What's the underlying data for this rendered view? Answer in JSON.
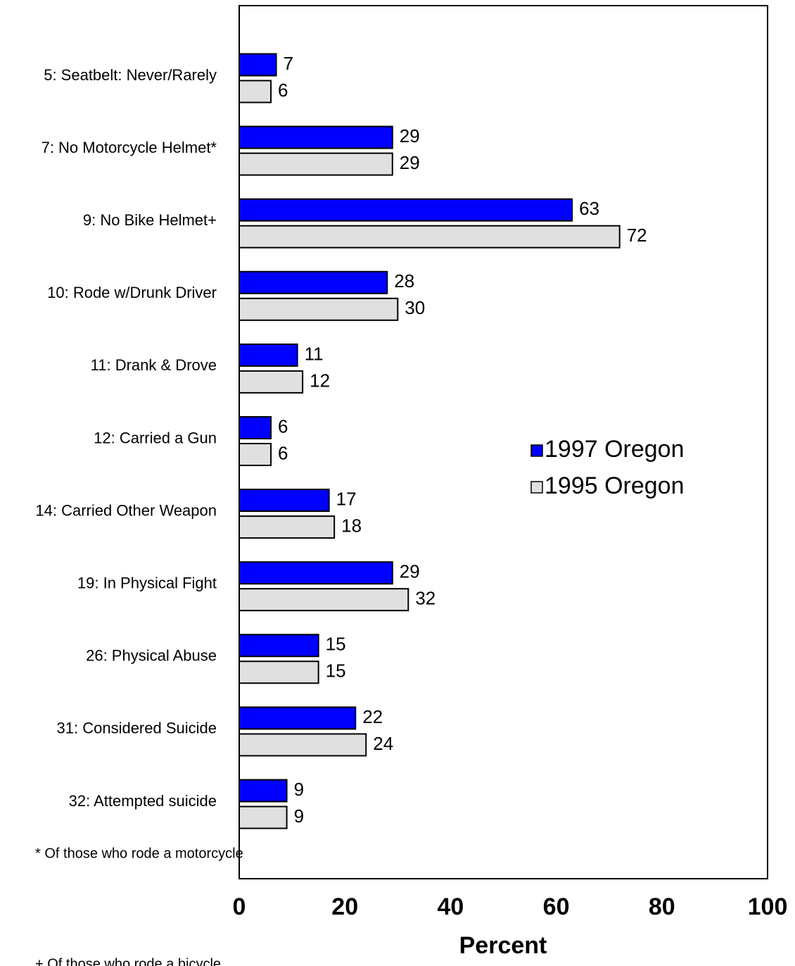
{
  "chart_data": {
    "type": "bar",
    "orientation": "horizontal",
    "categories": [
      "5: Seatbelt: Never/Rarely",
      "7: No Motorcycle Helmet*",
      "9: No Bike Helmet+",
      "10: Rode w/Drunk Driver",
      "11: Drank & Drove",
      "12: Carried a Gun",
      "14: Carried Other Weapon",
      "19: In Physical Fight",
      "26: Physical Abuse",
      "31: Considered Suicide",
      "32: Attempted suicide"
    ],
    "series": [
      {
        "name": "1997 Oregon",
        "color": "#0000ff",
        "values": [
          7,
          29,
          63,
          28,
          11,
          6,
          17,
          29,
          15,
          22,
          9
        ]
      },
      {
        "name": "1995 Oregon",
        "color": "#e0e0e0",
        "values": [
          6,
          29,
          72,
          30,
          12,
          6,
          18,
          32,
          15,
          24,
          9
        ]
      }
    ],
    "xlim": [
      0,
      100
    ],
    "xticks": [
      0,
      20,
      40,
      60,
      80,
      100
    ],
    "xlabel": "Percent",
    "footnotes": [
      "* Of those who rode a motorcycle",
      "+ Of those who rode a bicycle"
    ],
    "legend": "right"
  }
}
